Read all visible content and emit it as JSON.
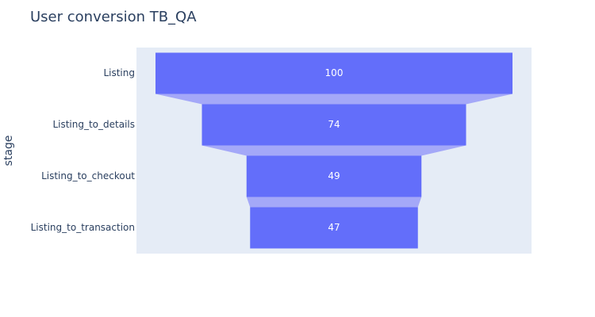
{
  "chart_data": {
    "type": "funnel",
    "title": "User conversion TB_QA",
    "ylabel": "stage",
    "categories": [
      "Listing",
      "Listing_to_details",
      "Listing_to_checkout",
      "Listing_to_transaction"
    ],
    "values": [
      100,
      74,
      49,
      47
    ],
    "colors": {
      "bar": "#636efa",
      "connector": "#a4a8f8",
      "plot_bg": "#e5ecf6"
    }
  }
}
